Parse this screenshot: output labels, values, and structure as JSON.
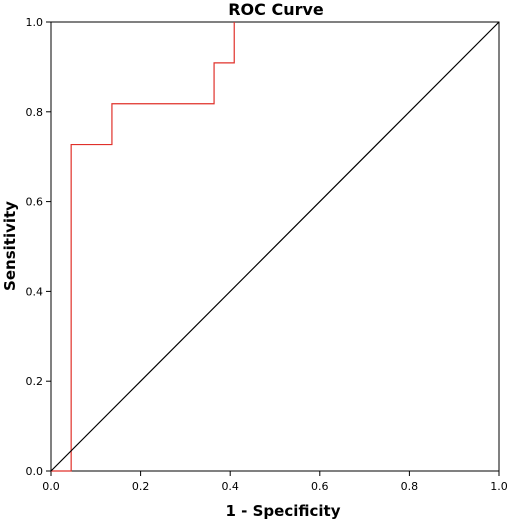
{
  "chart_data": {
    "type": "line",
    "title": "ROC Curve",
    "xlabel": "1 - Specificity",
    "ylabel": "Sensitivity",
    "xlim": [
      0.0,
      1.0
    ],
    "ylim": [
      0.0,
      1.0
    ],
    "x_ticks": [
      "0.0",
      "0.2",
      "0.4",
      "0.6",
      "0.8",
      "1.0"
    ],
    "y_ticks": [
      "0.0",
      "0.2",
      "0.4",
      "0.6",
      "0.8",
      "1.0"
    ],
    "grid": false,
    "legend": "none",
    "series": [
      {
        "color": "#e0302a",
        "points": [
          [
            0.0,
            0.0
          ],
          [
            0.045,
            0.0
          ],
          [
            0.045,
            0.727
          ],
          [
            0.136,
            0.727
          ],
          [
            0.136,
            0.818
          ],
          [
            0.364,
            0.818
          ],
          [
            0.364,
            0.909
          ],
          [
            0.409,
            0.909
          ],
          [
            0.409,
            1.0
          ]
        ]
      },
      {
        "color": "#000000",
        "points": [
          [
            0.0,
            0.0
          ],
          [
            1.0,
            1.0
          ]
        ]
      }
    ]
  }
}
